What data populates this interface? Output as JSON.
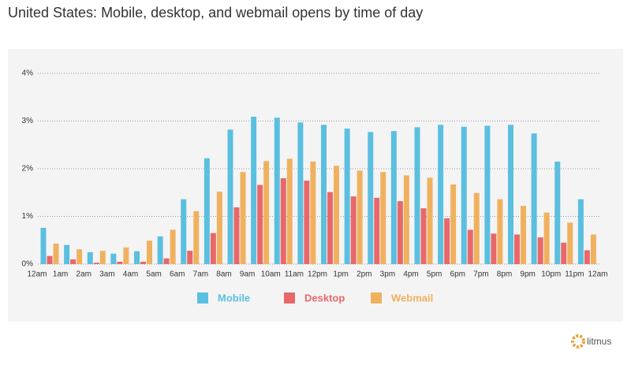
{
  "brand": "litmus",
  "chart_data": {
    "type": "bar",
    "title": "United States: Mobile, desktop, and webmail opens by time of day",
    "x": [
      0,
      1,
      2,
      3,
      4,
      5,
      6,
      7,
      8,
      9,
      10,
      11,
      12,
      13,
      14,
      15,
      16,
      17,
      18,
      19,
      20,
      21,
      22,
      23
    ],
    "xlim": [
      0,
      24
    ],
    "xticks": [
      {
        "value": 0,
        "label": "12am"
      },
      {
        "value": 1,
        "label": "1am"
      },
      {
        "value": 2,
        "label": "2am"
      },
      {
        "value": 3,
        "label": "3am"
      },
      {
        "value": 4,
        "label": "4am"
      },
      {
        "value": 5,
        "label": "5am"
      },
      {
        "value": 6,
        "label": "6am"
      },
      {
        "value": 7,
        "label": "7am"
      },
      {
        "value": 8,
        "label": "8am"
      },
      {
        "value": 9,
        "label": "9am"
      },
      {
        "value": 10,
        "label": "10am"
      },
      {
        "value": 11,
        "label": "11am"
      },
      {
        "value": 12,
        "label": "12pm"
      },
      {
        "value": 13,
        "label": "1pm"
      },
      {
        "value": 14,
        "label": "2pm"
      },
      {
        "value": 15,
        "label": "3pm"
      },
      {
        "value": 16,
        "label": "4pm"
      },
      {
        "value": 17,
        "label": "5pm"
      },
      {
        "value": 18,
        "label": "6pm"
      },
      {
        "value": 19,
        "label": "7pm"
      },
      {
        "value": 20,
        "label": "8pm"
      },
      {
        "value": 21,
        "label": "9pm"
      },
      {
        "value": 22,
        "label": "10pm"
      },
      {
        "value": 23,
        "label": "11pm"
      },
      {
        "value": 24,
        "label": "12am"
      }
    ],
    "ylim": [
      0,
      4
    ],
    "yticks": [
      {
        "value": 0,
        "label": "0%"
      },
      {
        "value": 1,
        "label": "1%"
      },
      {
        "value": 2,
        "label": "2%"
      },
      {
        "value": 3,
        "label": "3%"
      },
      {
        "value": 4,
        "label": "4%"
      }
    ],
    "grid": true,
    "legend": "bottom",
    "series": [
      {
        "name": "Mobile",
        "color": "#5bbfdf",
        "values": [
          0.76,
          0.4,
          0.25,
          0.22,
          0.27,
          0.58,
          1.36,
          2.22,
          2.82,
          3.09,
          3.07,
          2.97,
          2.92,
          2.84,
          2.77,
          2.79,
          2.87,
          2.92,
          2.88,
          2.9,
          2.92,
          2.74,
          2.15,
          1.36
        ]
      },
      {
        "name": "Desktop",
        "color": "#e8686a",
        "values": [
          0.17,
          0.1,
          0.03,
          0.05,
          0.05,
          0.12,
          0.28,
          0.65,
          1.19,
          1.66,
          1.8,
          1.75,
          1.51,
          1.42,
          1.39,
          1.32,
          1.17,
          0.96,
          0.72,
          0.64,
          0.62,
          0.56,
          0.45,
          0.29
        ]
      },
      {
        "name": "Webmail",
        "color": "#f0b15f",
        "values": [
          0.43,
          0.31,
          0.28,
          0.35,
          0.49,
          0.72,
          1.11,
          1.52,
          1.93,
          2.16,
          2.21,
          2.15,
          2.06,
          1.96,
          1.93,
          1.86,
          1.81,
          1.67,
          1.49,
          1.36,
          1.22,
          1.08,
          0.87,
          0.62
        ]
      }
    ]
  }
}
